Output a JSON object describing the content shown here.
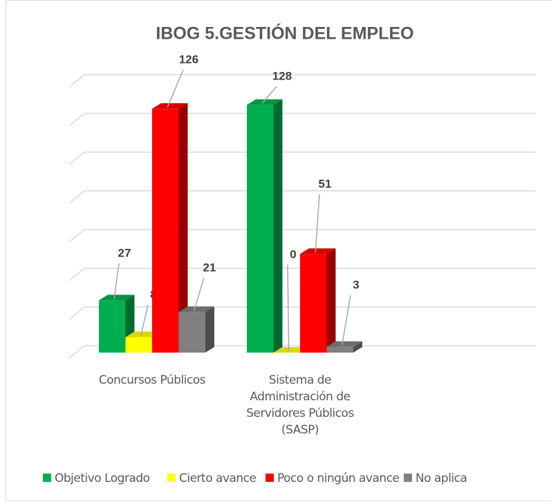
{
  "chart_data": {
    "type": "bar3d",
    "title": "IBOG 5.GESTIÓN DEL EMPLEO",
    "categories": [
      "Concursos Públicos",
      "Sistema de Administración de Servidores Públicos (SASP)"
    ],
    "series": [
      {
        "name": "Objetivo Logrado",
        "color": "#00b050",
        "values": [
          27,
          128
        ]
      },
      {
        "name": "Cierto avance",
        "color": "#ffff00",
        "values": [
          8,
          0
        ]
      },
      {
        "name": "Poco o ningún avance",
        "color": "#ff0000",
        "values": [
          126,
          51
        ]
      },
      {
        "name": "No aplica",
        "color": "#808080",
        "values": [
          21,
          3
        ]
      }
    ],
    "ylim": [
      0,
      140
    ],
    "yticks": [
      0,
      20,
      40,
      60,
      80,
      100,
      120,
      140
    ],
    "grid": true,
    "legend": "bottom"
  }
}
